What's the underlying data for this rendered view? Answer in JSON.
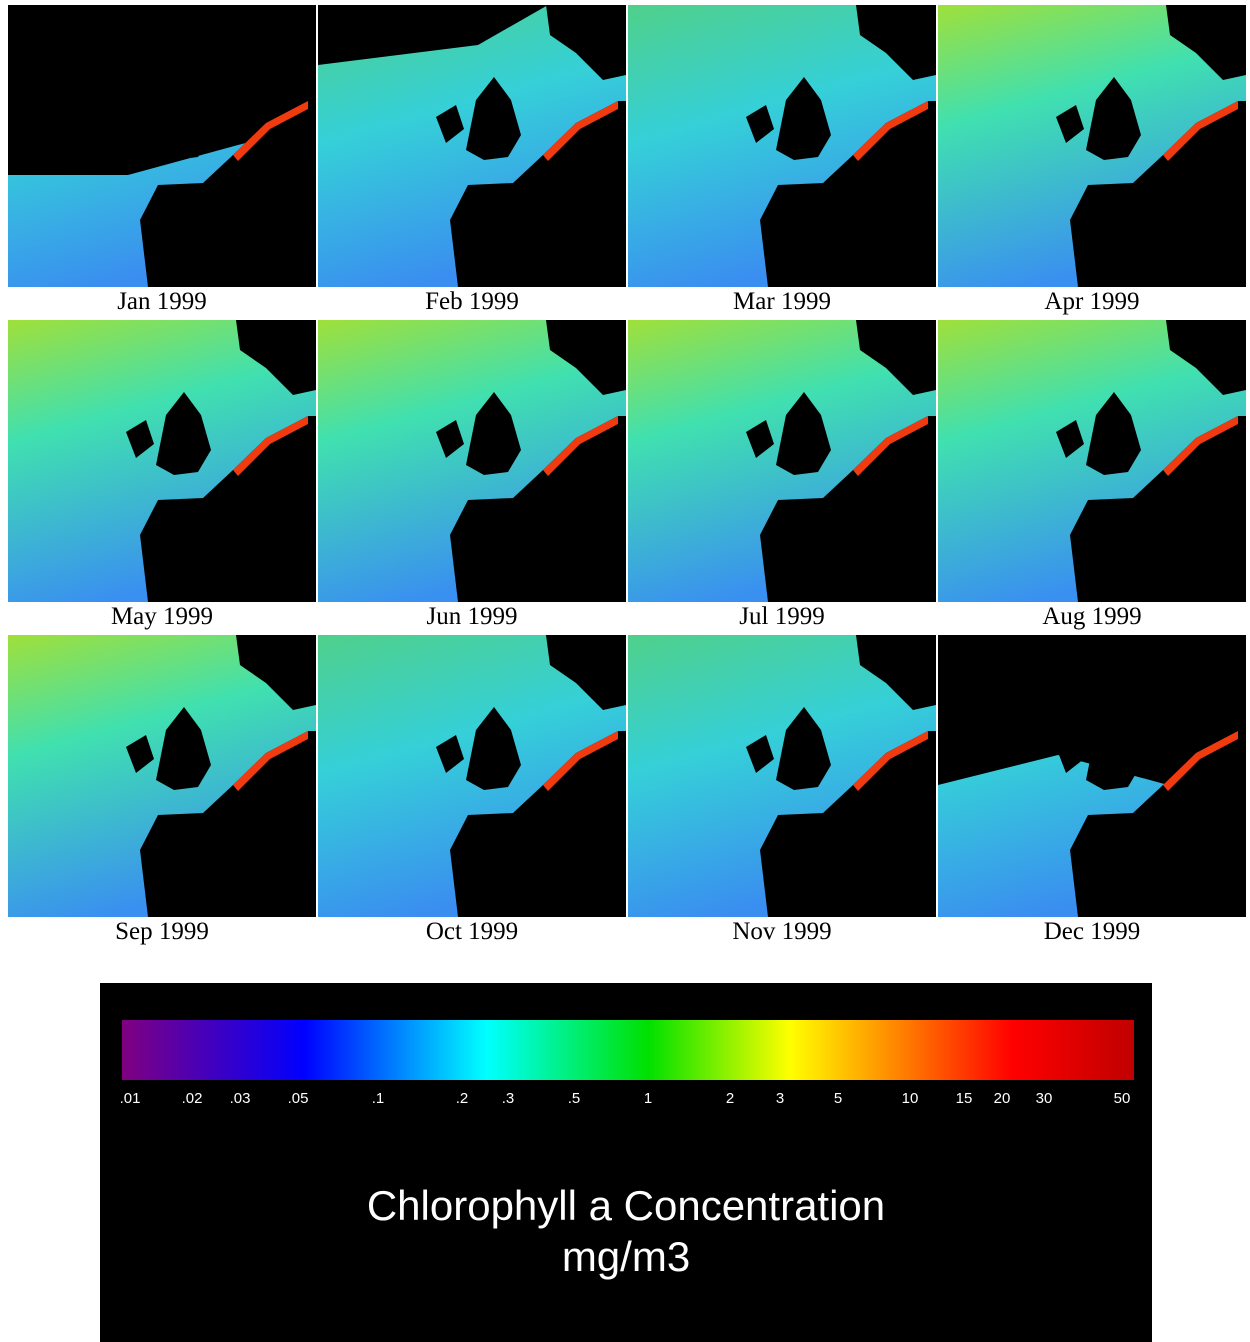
{
  "panels": [
    {
      "label": "Jan 1999"
    },
    {
      "label": "Feb 1999"
    },
    {
      "label": "Mar 1999"
    },
    {
      "label": "Apr 1999"
    },
    {
      "label": "May 1999"
    },
    {
      "label": "Jun 1999"
    },
    {
      "label": "Jul 1999"
    },
    {
      "label": "Aug 1999"
    },
    {
      "label": "Sep 1999"
    },
    {
      "label": "Oct 1999"
    },
    {
      "label": "Nov 1999"
    },
    {
      "label": "Dec 1999"
    }
  ],
  "legend": {
    "ticks": [
      ".01",
      ".02",
      ".03",
      ".05",
      ".1",
      ".2",
      ".3",
      ".5",
      "1",
      "2",
      "3",
      "5",
      "10",
      "15",
      "20",
      "30",
      "50"
    ],
    "title": "Chlorophyll a Concentration",
    "unit": "mg/m3"
  }
}
